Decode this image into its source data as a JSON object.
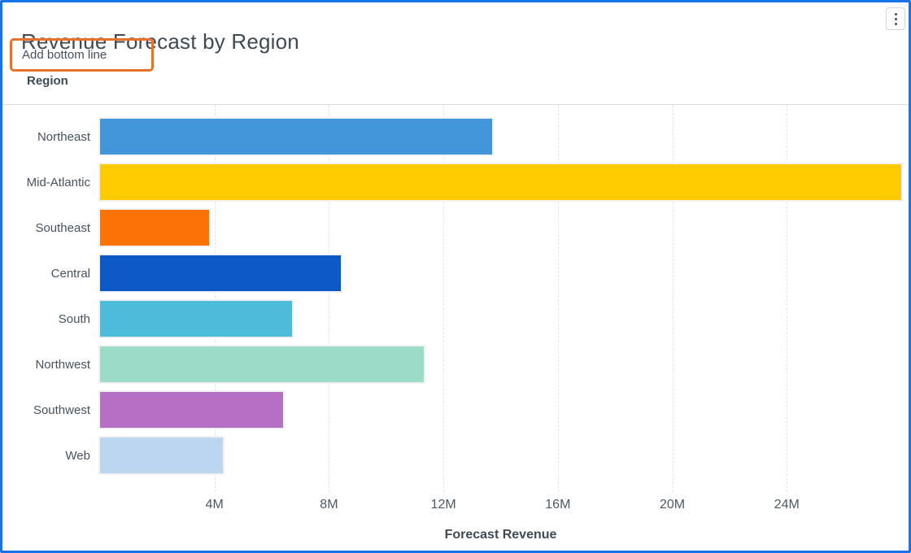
{
  "card": {
    "title": "Revenue Forecast by Region",
    "action_label": "Add bottom line",
    "region_header": "Region",
    "menu_icon": "kebab-vertical-icon",
    "colors": {
      "window_border": "#1774E8",
      "annotation_border": "#E7722B",
      "divider": "#DBDBDB",
      "gridline": "#E3E3E3"
    }
  },
  "chart_data": {
    "type": "bar",
    "orientation": "horizontal",
    "title": "Revenue Forecast by Region",
    "group_label": "Region",
    "xlabel": "Forecast Revenue",
    "ylabel": "Region",
    "unit": "M",
    "categories": [
      "Northeast",
      "Mid-Atlantic",
      "Southeast",
      "Central",
      "South",
      "Northwest",
      "Southwest",
      "Web"
    ],
    "values": [
      13.7,
      28,
      3.8,
      8.4,
      6.7,
      11.3,
      6.4,
      4.3
    ],
    "bar_colors": [
      "#4295D8",
      "#FFCA00",
      "#FA7304",
      "#0B59C6",
      "#4DBCDB",
      "#9DDBC9",
      "#B66FC4",
      "#BDD6EF"
    ],
    "xlim": [
      0,
      28
    ],
    "xticks": [
      {
        "value": 4,
        "label": "4M"
      },
      {
        "value": 8,
        "label": "8M"
      },
      {
        "value": 12,
        "label": "12M"
      },
      {
        "value": 16,
        "label": "16M"
      },
      {
        "value": 20,
        "label": "20M"
      },
      {
        "value": 24,
        "label": "24M"
      }
    ],
    "grid": "vertical-dashed",
    "legend": "none"
  }
}
